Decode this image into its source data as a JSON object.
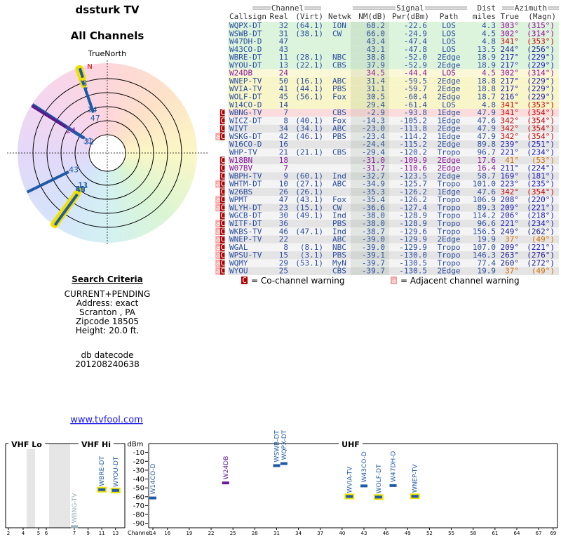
{
  "header": {
    "title": "dssturk TV",
    "subtitle": "All Channels"
  },
  "polar": {
    "north_label": "TrueNorth",
    "n": "N"
  },
  "table": {
    "groups": [
      "Channel",
      "Signal",
      "Dist",
      "Azimuth"
    ],
    "columns": [
      "Callsign",
      "Real",
      "(Virt)",
      "Netwk",
      "NM(dB)",
      "Pwr(dBm)",
      "Path",
      "miles",
      "True",
      "(Magn)"
    ],
    "rows": [
      [
        null,
        "WQPX-DT",
        32,
        "(64.1)",
        "ION",
        "68.2",
        "-22.6",
        "LOS",
        "4.3",
        "303°",
        "(315°)"
      ],
      [
        null,
        "WSWB-DT",
        31,
        "(38.1)",
        "CW",
        "66.0",
        "-24.9",
        "LOS",
        "4.5",
        "302°",
        "(314°)"
      ],
      [
        null,
        "W47DH-D",
        47,
        null,
        null,
        "43.4",
        "-47.4",
        "LOS",
        "4.8",
        "341°",
        "(353°)"
      ],
      [
        null,
        "W43CO-D",
        43,
        null,
        null,
        "43.1",
        "-47.8",
        "LOS",
        "13.5",
        "244°",
        "(256°)"
      ],
      [
        null,
        "WBRE-DT",
        11,
        "(28.1)",
        "NBC",
        "38.8",
        "-52.0",
        "2Edge",
        "18.9",
        "217°",
        "(229°)"
      ],
      [
        null,
        "WYOU-DT",
        13,
        "(22.1)",
        "CBS",
        "37.9",
        "-52.9",
        "2Edge",
        "18.9",
        "217°",
        "(229°)"
      ],
      [
        null,
        "W24DB",
        24,
        null,
        null,
        "34.5",
        "-44.4",
        "LOS",
        "4.5",
        "302°",
        "(314°)"
      ],
      [
        null,
        "WNEP-TV",
        50,
        "(16.1)",
        "ABC",
        "31.4",
        "-59.5",
        "2Edge",
        "18.8",
        "217°",
        "(229°)"
      ],
      [
        null,
        "WVIA-TV",
        41,
        "(44.1)",
        "PBS",
        "31.1",
        "-59.7",
        "2Edge",
        "18.8",
        "217°",
        "(229°)"
      ],
      [
        null,
        "WOLF-DT",
        45,
        "(56.1)",
        "Fox",
        "30.5",
        "-60.4",
        "2Edge",
        "18.7",
        "216°",
        "(229°)"
      ],
      [
        null,
        "W14CO-D",
        14,
        null,
        null,
        "29.4",
        "-61.4",
        "LOS",
        "4.8",
        "341°",
        "(353°)"
      ],
      [
        "C",
        "WBNG-TV",
        7,
        null,
        "CBS",
        "-2.9",
        "-93.8",
        "1Edge",
        "47.9",
        "341°",
        "(354°)"
      ],
      [
        "C",
        "WICZ-DT",
        8,
        "(40.1)",
        "Fox",
        "-14.3",
        "-105.2",
        "1Edge",
        "47.6",
        "342°",
        "(354°)"
      ],
      [
        "C",
        "WIVT",
        34,
        "(34.1)",
        "ABC",
        "-23.0",
        "-113.8",
        "2Edge",
        "47.9",
        "342°",
        "(354°)"
      ],
      [
        "aC",
        "WSKG-DT",
        42,
        "(46.1)",
        "PBS",
        "-23.4",
        "-114.2",
        "1Edge",
        "47.9",
        "342°",
        "(354°)"
      ],
      [
        null,
        "W16CO-D",
        16,
        null,
        null,
        "-24.4",
        "-115.2",
        "2Edge",
        "89.8",
        "239°",
        "(251°)"
      ],
      [
        null,
        "WHP-TV",
        21,
        "(21.1)",
        "CBS",
        "-29.4",
        "-120.2",
        "Tropo",
        "96.7",
        "221°",
        "(234°)"
      ],
      [
        "C",
        "W18BN",
        18,
        null,
        null,
        "-31.0",
        "-109.9",
        "2Edge",
        "17.6",
        "41°",
        "(53°)"
      ],
      [
        "C",
        "W07BV",
        7,
        null,
        null,
        "-31.7",
        "-110.6",
        "2Edge",
        "16.4",
        "211°",
        "(224°)"
      ],
      [
        "C",
        "WBPH-TV",
        9,
        "(60.1)",
        "Ind",
        "-32.7",
        "-123.5",
        "2Edge",
        "58.7",
        "169°",
        "(181°)"
      ],
      [
        "aC",
        "WHTM-DT",
        10,
        "(27.1)",
        "ABC",
        "-34.9",
        "-125.7",
        "Tropo",
        "101.0",
        "223°",
        "(235°)"
      ],
      [
        "C",
        "W26BS",
        26,
        "(26.1)",
        null,
        "-35.3",
        "-126.2",
        "1Edge",
        "47.6",
        "342°",
        "(354°)"
      ],
      [
        "aC",
        "WPMT",
        47,
        "(43.1)",
        "Fox",
        "-35.4",
        "-126.2",
        "Tropo",
        "106.9",
        "208°",
        "(220°)"
      ],
      [
        "aC",
        "WLYH-DT",
        23,
        "(15.1)",
        "CW",
        "-36.6",
        "-127.4",
        "Tropo",
        "89.3",
        "209°",
        "(221°)"
      ],
      [
        "C",
        "WGCB-DT",
        30,
        "(49.1)",
        "Ind",
        "-38.0",
        "-128.9",
        "Tropo",
        "114.2",
        "206°",
        "(218°)"
      ],
      [
        "aC",
        "WITF-DT",
        36,
        null,
        "PBS",
        "-38.0",
        "-128.9",
        "Tropo",
        "96.6",
        "221°",
        "(234°)"
      ],
      [
        "aC",
        "WKBS-TV",
        46,
        "(47.1)",
        "Ind",
        "-38.7",
        "-129.6",
        "Tropo",
        "156.5",
        "249°",
        "(262°)"
      ],
      [
        "aC",
        "WNEP-TV",
        22,
        null,
        "ABC",
        "-39.0",
        "-129.9",
        "2Edge",
        "19.9",
        "37°",
        "(49°)"
      ],
      [
        "aC",
        "WGAL",
        8,
        "(8.1)",
        "NBC",
        "-39.0",
        "-129.9",
        "Tropo",
        "107.0",
        "209°",
        "(221°)"
      ],
      [
        "aC",
        "WPSU-TV",
        15,
        "(3.1)",
        "PBS",
        "-39.1",
        "-130.0",
        "Tropo",
        "146.3",
        "263°",
        "(276°)"
      ],
      [
        "aC",
        "WQMY",
        29,
        "(53.1)",
        "MyN",
        "-39.7",
        "-130.5",
        "Tropo",
        "77.4",
        "260°",
        "(272°)"
      ],
      [
        "aC",
        "WYOU",
        25,
        null,
        "CBS",
        "-39.7",
        "-130.5",
        "2Edge",
        "19.9",
        "37°",
        "(49°)"
      ]
    ]
  },
  "legend": [
    {
      "mark": "C",
      "text": "= Co-channel warning"
    },
    {
      "mark": "a",
      "text": "= Adjacent channel warning"
    }
  ],
  "search": {
    "title": "Search Criteria",
    "lines": [
      "CURRENT+PENDING",
      "Address: exact",
      "Scranton , PA",
      "Zipcode 18505",
      "Height: 20.0 ft."
    ]
  },
  "datecode": {
    "label": "db datecode",
    "value": "201208240638"
  },
  "link": "www.tvfool.com",
  "chart_data": {
    "type": "spectrum",
    "bands": [
      "VHF Lo",
      "VHF Hi",
      "UHF"
    ],
    "x_label": "Channel",
    "y_label": "dBm",
    "ylim": [
      -95,
      0
    ],
    "yticks": [
      -10,
      -20,
      -30,
      -40,
      -50,
      -60,
      -70,
      -80,
      -90
    ],
    "xticks": [
      2,
      4,
      5,
      6,
      7,
      9,
      11,
      13,
      14,
      16,
      19,
      22,
      25,
      28,
      31,
      34,
      37,
      40,
      43,
      46,
      49,
      52,
      55,
      58,
      61,
      64,
      67,
      69
    ]
  }
}
